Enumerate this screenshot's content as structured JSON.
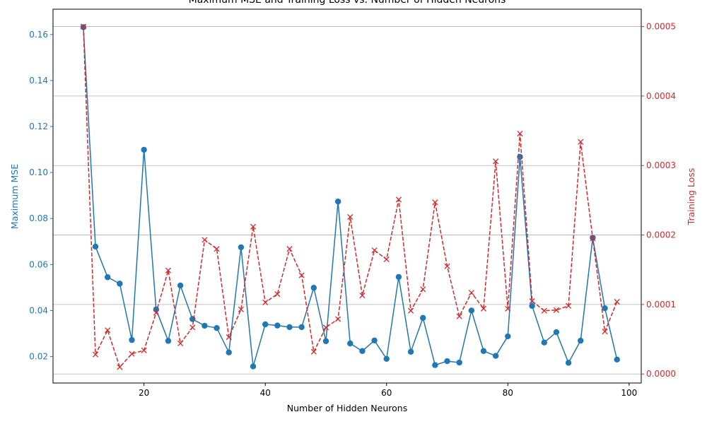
{
  "chart_data": {
    "type": "line",
    "title": "Maximum MSE and Training Loss vs. Number of Hidden Neurons",
    "xlabel": "Number of Hidden Neurons",
    "ylabel_left": "Maximum MSE",
    "ylabel_right": "Training Loss",
    "xlim": [
      5,
      102
    ],
    "x_ticks": [
      20,
      40,
      60,
      80,
      100
    ],
    "x_tick_labels": [
      "20",
      "40",
      "60",
      "80",
      "100"
    ],
    "ylim_left": [
      0.0085,
      0.171
    ],
    "y_ticks_left": [
      0.02,
      0.04,
      0.06,
      0.08,
      0.1,
      0.12,
      0.14,
      0.16
    ],
    "y_tick_labels_left": [
      "0.02",
      "0.04",
      "0.06",
      "0.08",
      "0.10",
      "0.12",
      "0.14",
      "0.16"
    ],
    "ylim_right": [
      -1.3e-05,
      0.000525
    ],
    "y_ticks_right": [
      0,
      0.0001,
      0.0002,
      0.0003,
      0.0004,
      0.0005
    ],
    "y_tick_labels_right": [
      "0.0000",
      "0.0001",
      "0.0002",
      "0.0003",
      "0.0004",
      "0.0005"
    ],
    "grid": "horizontal lines at right-axis ticks",
    "colors": {
      "left": "#1f77b4",
      "right": "#d62728",
      "axis": "#000000",
      "grid": "#b0b0b0"
    },
    "x": [
      10,
      12,
      14,
      16,
      18,
      20,
      22,
      24,
      26,
      28,
      30,
      32,
      34,
      36,
      38,
      40,
      42,
      44,
      46,
      48,
      50,
      52,
      54,
      56,
      58,
      60,
      62,
      64,
      66,
      68,
      70,
      72,
      74,
      76,
      78,
      80,
      82,
      84,
      86,
      88,
      90,
      92,
      94,
      96,
      98
    ],
    "series": [
      {
        "axis": "left",
        "marker": "circle",
        "line": "solid",
        "values": [
          0.1632,
          0.0678,
          0.0545,
          0.0517,
          0.0272,
          0.1099,
          0.0405,
          0.0268,
          0.0509,
          0.0363,
          0.0334,
          0.0324,
          0.0218,
          0.0675,
          0.0157,
          0.034,
          0.0335,
          0.0328,
          0.0328,
          0.0499,
          0.0267,
          0.0874,
          0.0257,
          0.0224,
          0.027,
          0.019,
          0.0546,
          0.0221,
          0.0368,
          0.0163,
          0.018,
          0.0174,
          0.04,
          0.0224,
          0.0203,
          0.0288,
          0.1068,
          0.042,
          0.0261,
          0.0306,
          0.0173,
          0.0269,
          0.0716,
          0.041,
          0.0187
        ]
      },
      {
        "axis": "right",
        "marker": "x",
        "line": "dashed",
        "values": [
          0.0005,
          2.8e-05,
          6.3e-05,
          1e-05,
          2.9e-05,
          3.4e-05,
          8.8e-05,
          0.000149,
          4.4e-05,
          6.7e-05,
          0.000193,
          0.00018,
          5.3e-05,
          9.3e-05,
          0.000212,
          0.000103,
          0.000115,
          0.00018,
          0.000142,
          3.2e-05,
          6.7e-05,
          7.9e-05,
          0.000226,
          0.000113,
          0.000178,
          0.000165,
          0.000251,
          9.1e-05,
          0.000122,
          0.000247,
          0.000155,
          8.3e-05,
          0.000117,
          9.4e-05,
          0.000306,
          9.4e-05,
          0.000346,
          0.000105,
          9.1e-05,
          9.2e-05,
          9.8e-05,
          0.000334,
          0.000195,
          6.1e-05,
          0.000104
        ]
      }
    ]
  }
}
